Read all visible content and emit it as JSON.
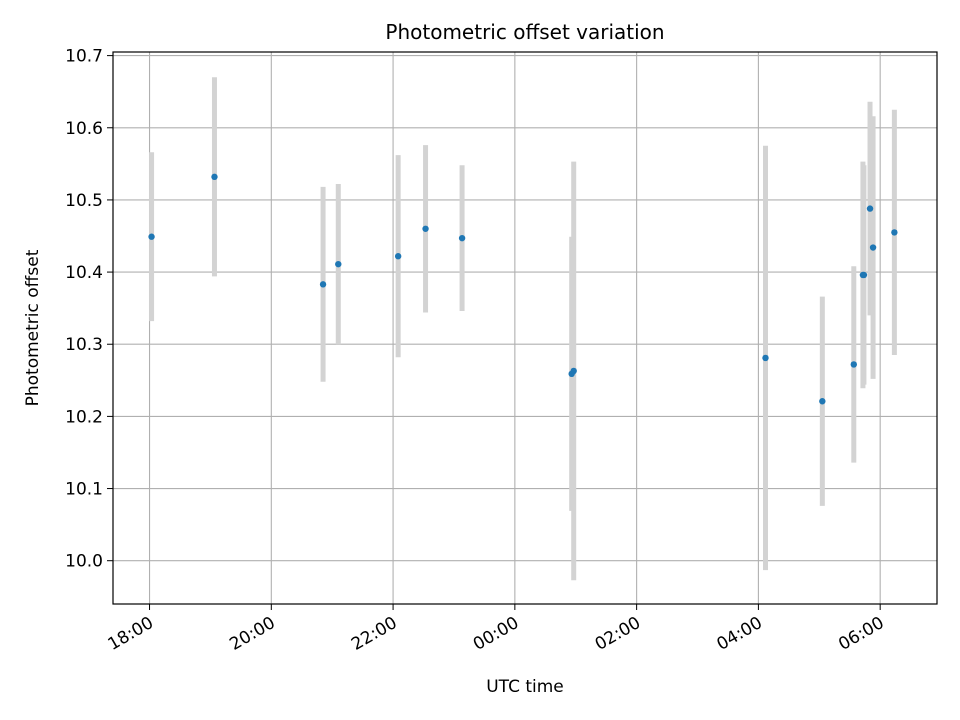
{
  "chart_data": {
    "type": "scatter",
    "title": "Photometric offset variation",
    "xlabel": "UTC time",
    "ylabel": "Photometric offset",
    "xlim": [
      "2000-01-01T17:24:00",
      "2000-01-02T06:56:00"
    ],
    "ylim": [
      9.94,
      10.705
    ],
    "x_ticks": [
      {
        "t": "2000-01-01T18:00:00",
        "label": "18:00"
      },
      {
        "t": "2000-01-01T20:00:00",
        "label": "20:00"
      },
      {
        "t": "2000-01-01T22:00:00",
        "label": "22:00"
      },
      {
        "t": "2000-01-02T00:00:00",
        "label": "00:00"
      },
      {
        "t": "2000-01-02T02:00:00",
        "label": "02:00"
      },
      {
        "t": "2000-01-02T04:00:00",
        "label": "04:00"
      },
      {
        "t": "2000-01-02T06:00:00",
        "label": "06:00"
      }
    ],
    "y_ticks": [
      10.0,
      10.1,
      10.2,
      10.3,
      10.4,
      10.5,
      10.6,
      10.7
    ],
    "y_tick_labels": [
      "10.0",
      "10.1",
      "10.2",
      "10.3",
      "10.4",
      "10.5",
      "10.6",
      "10.7"
    ],
    "grid": true,
    "colors": {
      "point": "#1f77b4",
      "errorbar": "#d3d3d3",
      "grid": "#b0b0b0"
    },
    "points": [
      {
        "t": "2000-01-01T18:02:00",
        "y": 10.449,
        "err": 0.117
      },
      {
        "t": "2000-01-01T19:04:00",
        "y": 10.532,
        "err": 0.138
      },
      {
        "t": "2000-01-01T20:51:00",
        "y": 10.383,
        "err": 0.135
      },
      {
        "t": "2000-01-01T21:06:00",
        "y": 10.411,
        "err": 0.111
      },
      {
        "t": "2000-01-01T22:05:00",
        "y": 10.422,
        "err": 0.14
      },
      {
        "t": "2000-01-01T22:32:00",
        "y": 10.46,
        "err": 0.116
      },
      {
        "t": "2000-01-01T23:08:00",
        "y": 10.447,
        "err": 0.101
      },
      {
        "t": "2000-01-02T00:56:00",
        "y": 10.259,
        "err": 0.19
      },
      {
        "t": "2000-01-02T00:58:00",
        "y": 10.263,
        "err": 0.29
      },
      {
        "t": "2000-01-02T04:07:00",
        "y": 10.281,
        "err": 0.294
      },
      {
        "t": "2000-01-02T05:03:00",
        "y": 10.221,
        "err": 0.145
      },
      {
        "t": "2000-01-02T05:34:00",
        "y": 10.272,
        "err": 0.136
      },
      {
        "t": "2000-01-02T05:43:00",
        "y": 10.396,
        "err": 0.157
      },
      {
        "t": "2000-01-02T05:44:00",
        "y": 10.396,
        "err": 0.152
      },
      {
        "t": "2000-01-02T05:50:00",
        "y": 10.488,
        "err": 0.148
      },
      {
        "t": "2000-01-02T05:53:00",
        "y": 10.434,
        "err": 0.182
      },
      {
        "t": "2000-01-02T06:14:00",
        "y": 10.455,
        "err": 0.17
      }
    ]
  }
}
